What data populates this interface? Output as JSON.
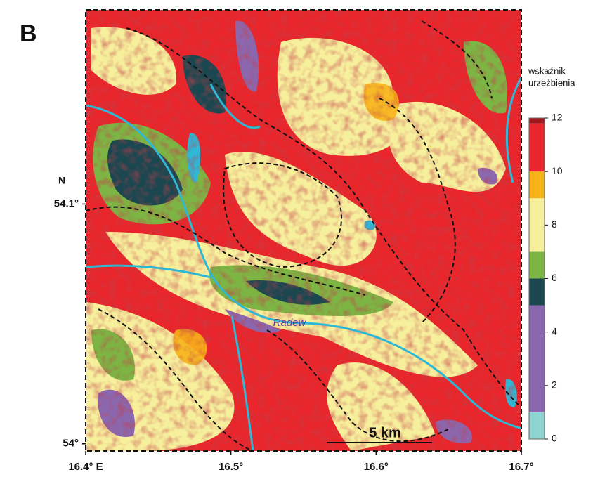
{
  "panel_label": "B",
  "map": {
    "north_label": "N",
    "xlim": [
      16.4,
      16.7
    ],
    "ylim": [
      53.997,
      54.181
    ],
    "xticks": [
      {
        "value": 16.4,
        "label": "16.4° E"
      },
      {
        "value": 16.5,
        "label": "16.5°"
      },
      {
        "value": 16.6,
        "label": "16.6°"
      },
      {
        "value": 16.7,
        "label": "16.7°"
      }
    ],
    "yticks": [
      {
        "value": 54,
        "label": "54°"
      },
      {
        "value": 54.1,
        "label": "54.1°"
      }
    ],
    "river_label": "Radew",
    "scale_label": "5 km"
  },
  "legend": {
    "title_lines": [
      "wskaźnik",
      "urzeźbienia"
    ],
    "ticks": [
      0,
      2,
      4,
      6,
      8,
      10,
      12
    ],
    "lim": [
      0,
      12
    ],
    "bins": [
      0,
      1,
      5,
      6,
      7,
      9,
      10,
      11.8,
      12
    ],
    "colors": [
      "#8ed5d1",
      "#8b67ae",
      "#1b4750",
      "#7db544",
      "#f6ef9c",
      "#f7b418",
      "#e8262b",
      "#9e1a1e"
    ]
  }
}
